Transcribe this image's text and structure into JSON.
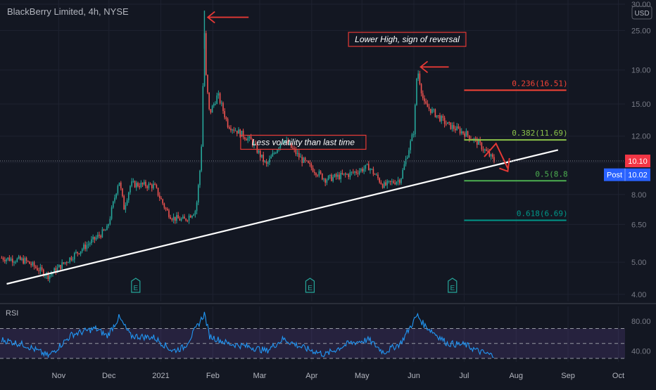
{
  "header": {
    "symbol_title": "BlackBerry Limited, 4h, NYSE"
  },
  "currency_badge": "USD",
  "colors": {
    "background": "#131722",
    "candle_up": "#26a69a",
    "candle_down": "#ef5350",
    "trendline": "#ffffff",
    "annotation": "#e53935",
    "fib_0236": "#f44336",
    "fib_0382": "#8bc34a",
    "fib_05": "#4caf50",
    "fib_0618": "#009688",
    "rsi_line": "#2196f3",
    "rsi_fill": "#7e57c2"
  },
  "chart_data": [
    {
      "type": "candlestick",
      "title": "BlackBerry Limited, 4h, NYSE",
      "price_scale": "log",
      "ylim": [
        3.9,
        30
      ],
      "y_ticks": [
        "4.00",
        "5.00",
        "6.50",
        "8.00",
        "10.00",
        "12.00",
        "15.00",
        "19.00",
        "25.00",
        "30.00"
      ],
      "x_ticks": [
        "Nov",
        "Dec",
        "2021",
        "Feb",
        "Mar",
        "Apr",
        "May",
        "Jun",
        "Jul",
        "Aug",
        "Sep",
        "Oct"
      ],
      "price_path": [
        [
          "2020-09-28",
          5.15
        ],
        [
          "2020-10-12",
          5.05
        ],
        [
          "2020-10-26",
          4.55
        ],
        [
          "2020-11-09",
          5.2
        ],
        [
          "2020-11-23",
          5.9
        ],
        [
          "2020-11-30",
          6.3
        ],
        [
          "2020-12-07",
          8.9
        ],
        [
          "2020-12-10",
          7.3
        ],
        [
          "2020-12-14",
          8.6
        ],
        [
          "2020-12-28",
          8.5
        ],
        [
          "2021-01-04",
          7.2
        ],
        [
          "2021-01-08",
          6.8
        ],
        [
          "2021-01-15",
          6.7
        ],
        [
          "2021-01-22",
          7.2
        ],
        [
          "2021-01-25",
          10.3
        ],
        [
          "2021-01-27",
          25.0
        ],
        [
          "2021-01-28",
          18.0
        ],
        [
          "2021-01-30",
          14.0
        ],
        [
          "2021-02-04",
          16.0
        ],
        [
          "2021-02-10",
          13.0
        ],
        [
          "2021-02-24",
          11.6
        ],
        [
          "2021-03-05",
          9.8
        ],
        [
          "2021-03-15",
          11.8
        ],
        [
          "2021-03-26",
          10.2
        ],
        [
          "2021-04-09",
          8.9
        ],
        [
          "2021-04-23",
          9.2
        ],
        [
          "2021-05-05",
          9.7
        ],
        [
          "2021-05-14",
          8.5
        ],
        [
          "2021-05-24",
          8.9
        ],
        [
          "2021-06-01",
          12.5
        ],
        [
          "2021-06-03",
          19.3
        ],
        [
          "2021-06-07",
          15.0
        ],
        [
          "2021-06-21",
          13.0
        ],
        [
          "2021-07-02",
          12.2
        ],
        [
          "2021-07-09",
          11.5
        ],
        [
          "2021-07-19",
          10.1
        ]
      ],
      "price_peak": [
        "2021-01-27",
        28.7
      ],
      "last_price": "10.10",
      "post_market": {
        "label": "Post",
        "price": "10.02"
      },
      "trendline": {
        "from": [
          "2020-10-01",
          4.3
        ],
        "to": [
          "2021-08-26",
          10.9
        ],
        "label": ""
      },
      "fibonacci": [
        {
          "label": "0.236(16.51)",
          "value": 16.51,
          "from": "2021-07-01",
          "to": "2021-08-31"
        },
        {
          "label": "0.382(11.69)",
          "value": 11.69,
          "from": "2021-07-01",
          "to": "2021-08-31"
        },
        {
          "label": "0.5(8.8",
          "value": 8.8,
          "from": "2021-07-01",
          "to": "2021-08-31"
        },
        {
          "label": "0.618(6.69)",
          "value": 6.69,
          "from": "2021-07-01",
          "to": "2021-08-31"
        }
      ],
      "annotations": [
        {
          "text": "Lower High, sign of reversal",
          "date": "2021-05-28",
          "price": 23.5
        },
        {
          "text": "Less volatility than last time",
          "date": "2021-03-27",
          "price": 11.5
        }
      ],
      "earnings_markers": [
        {
          "symbol": "E",
          "date": "2020-12-17"
        },
        {
          "symbol": "E",
          "date": "2021-03-31"
        },
        {
          "symbol": "E",
          "date": "2021-06-24"
        }
      ]
    },
    {
      "type": "line",
      "title": "RSI",
      "ylim": [
        30,
        95
      ],
      "y_ticks": [
        "80.00",
        "40.00"
      ],
      "bands": [
        70,
        50,
        30
      ],
      "x_ticks": [
        "Nov",
        "Dec",
        "2021",
        "Feb",
        "Mar",
        "Apr",
        "May",
        "Jun",
        "Jul",
        "Aug",
        "Sep",
        "Oct"
      ],
      "values_path": [
        [
          "2020-09-28",
          55
        ],
        [
          "2020-10-12",
          48
        ],
        [
          "2020-10-26",
          33
        ],
        [
          "2020-11-09",
          62
        ],
        [
          "2020-11-23",
          70
        ],
        [
          "2020-11-30",
          60
        ],
        [
          "2020-12-07",
          85
        ],
        [
          "2020-12-14",
          60
        ],
        [
          "2020-12-28",
          58
        ],
        [
          "2021-01-08",
          40
        ],
        [
          "2021-01-15",
          45
        ],
        [
          "2021-01-22",
          70
        ],
        [
          "2021-01-27",
          90
        ],
        [
          "2021-01-30",
          60
        ],
        [
          "2021-02-10",
          50
        ],
        [
          "2021-02-24",
          45
        ],
        [
          "2021-03-05",
          40
        ],
        [
          "2021-03-15",
          56
        ],
        [
          "2021-03-26",
          45
        ],
        [
          "2021-04-09",
          35
        ],
        [
          "2021-04-23",
          50
        ],
        [
          "2021-05-05",
          55
        ],
        [
          "2021-05-14",
          38
        ],
        [
          "2021-05-24",
          50
        ],
        [
          "2021-06-03",
          88
        ],
        [
          "2021-06-07",
          75
        ],
        [
          "2021-06-21",
          50
        ],
        [
          "2021-07-02",
          48
        ],
        [
          "2021-07-09",
          40
        ],
        [
          "2021-07-19",
          33
        ]
      ]
    }
  ]
}
